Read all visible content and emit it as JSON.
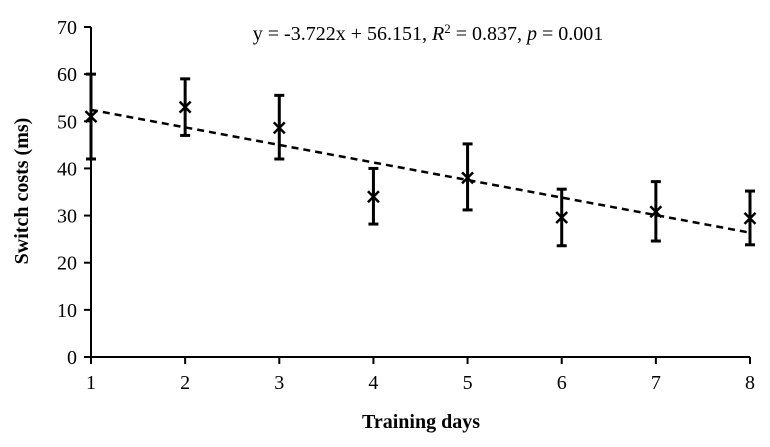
{
  "chart_data": {
    "type": "scatter",
    "xlabel": "Training days",
    "ylabel": "Switch costs (ms)",
    "xlim": [
      1,
      8
    ],
    "ylim": [
      0,
      70
    ],
    "x_ticks": [
      "1",
      "2",
      "3",
      "4",
      "5",
      "6",
      "7",
      "8"
    ],
    "y_ticks": [
      "0",
      "10",
      "20",
      "30",
      "40",
      "50",
      "60",
      "70"
    ],
    "grid": false,
    "legend": "none",
    "marker": "x",
    "colors": {
      "points": "#000000",
      "trendline": "#000000"
    },
    "points": [
      {
        "x": 1,
        "y": 51.0,
        "err_low": 42.0,
        "err_high": 60.0
      },
      {
        "x": 2,
        "y": 53.0,
        "err_low": 47.0,
        "err_high": 59.0
      },
      {
        "x": 3,
        "y": 48.6,
        "err_low": 42.0,
        "err_high": 55.5
      },
      {
        "x": 4,
        "y": 34.0,
        "err_low": 28.2,
        "err_high": 40.0
      },
      {
        "x": 5,
        "y": 38.0,
        "err_low": 31.2,
        "err_high": 45.2
      },
      {
        "x": 6,
        "y": 29.6,
        "err_low": 23.6,
        "err_high": 35.6
      },
      {
        "x": 7,
        "y": 30.8,
        "err_low": 24.6,
        "err_high": 37.2
      },
      {
        "x": 8,
        "y": 29.4,
        "err_low": 23.8,
        "err_high": 35.2
      }
    ],
    "trendline": {
      "slope": -3.722,
      "intercept": 56.151,
      "style": "dashed"
    },
    "annotation": {
      "prefix": "y = -3.722x + 56.151, ",
      "r2_label": "R",
      "r2_sup": "2",
      "r2_rest": " = 0.837, ",
      "p_label": "p",
      "p_rest": " = 0.001"
    }
  }
}
